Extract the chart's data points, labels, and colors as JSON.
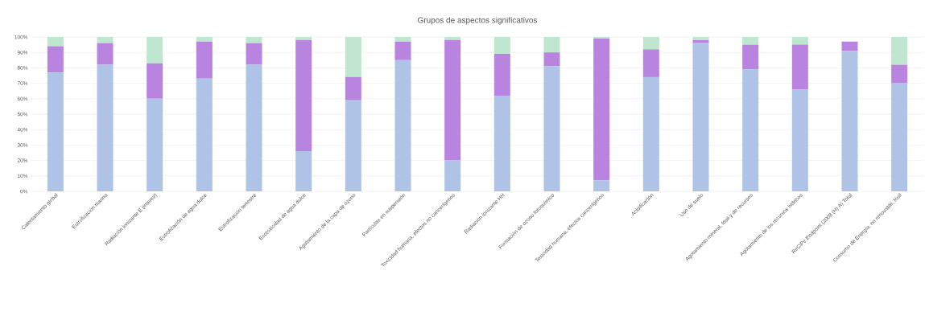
{
  "chart_data": {
    "type": "bar",
    "title": "Grupos de aspectos significativos",
    "stacked": true,
    "grid": "y",
    "categories": [
      "Calentamiento global",
      "Eutrofización marina",
      "Radiación ionizante E (interior)",
      "Eutrofización de agua dulce",
      "Eutrofización terrestre",
      "Ecotoxicidad de agua dulce",
      "Agotamiento de la capa de ozono",
      "Partículas en suspensión",
      "Toxicidad humana, efectos no cancerígenos",
      "Radiación ionizante HH",
      "Formación de ozono fotoquímico",
      "Toxicidad humana, efectos cancerígenos",
      "Acidificación",
      "Uso de suelo",
      "Agotamiento mineral, fósil y de recursos",
      "Agotamiento de los recursos hídricos",
      "ReCiPe Endpoint (2008 (H) A) Total",
      "Consumo de Energía, no renovable, fósil"
    ],
    "series": [
      {
        "color": "#aec3e6",
        "values": [
          77,
          82,
          60,
          73,
          82,
          26,
          59,
          85,
          20,
          62,
          81,
          7,
          74,
          96,
          79,
          66,
          91,
          70
        ]
      },
      {
        "color": "#b884e0",
        "values": [
          17,
          14,
          23,
          24,
          14,
          72,
          15,
          12,
          78,
          27,
          9,
          92,
          18,
          2,
          16,
          29,
          6,
          12
        ]
      },
      {
        "color": "#bfe6cf",
        "values": [
          6,
          4,
          17,
          3,
          4,
          2,
          26,
          3,
          2,
          11,
          10,
          1,
          8,
          2,
          5,
          5,
          0,
          18
        ]
      }
    ],
    "ylim": [
      0,
      100
    ],
    "yticks": [
      {
        "value": 0,
        "label": "0%"
      },
      {
        "value": 10,
        "label": "10%"
      },
      {
        "value": 20,
        "label": "20%"
      },
      {
        "value": 30,
        "label": "30%"
      },
      {
        "value": 40,
        "label": "40%"
      },
      {
        "value": 50,
        "label": "50%"
      },
      {
        "value": 60,
        "label": "60%"
      },
      {
        "value": 70,
        "label": "70%"
      },
      {
        "value": 80,
        "label": "80%"
      },
      {
        "value": 90,
        "label": "90%"
      },
      {
        "value": 100,
        "label": "100%"
      }
    ]
  }
}
